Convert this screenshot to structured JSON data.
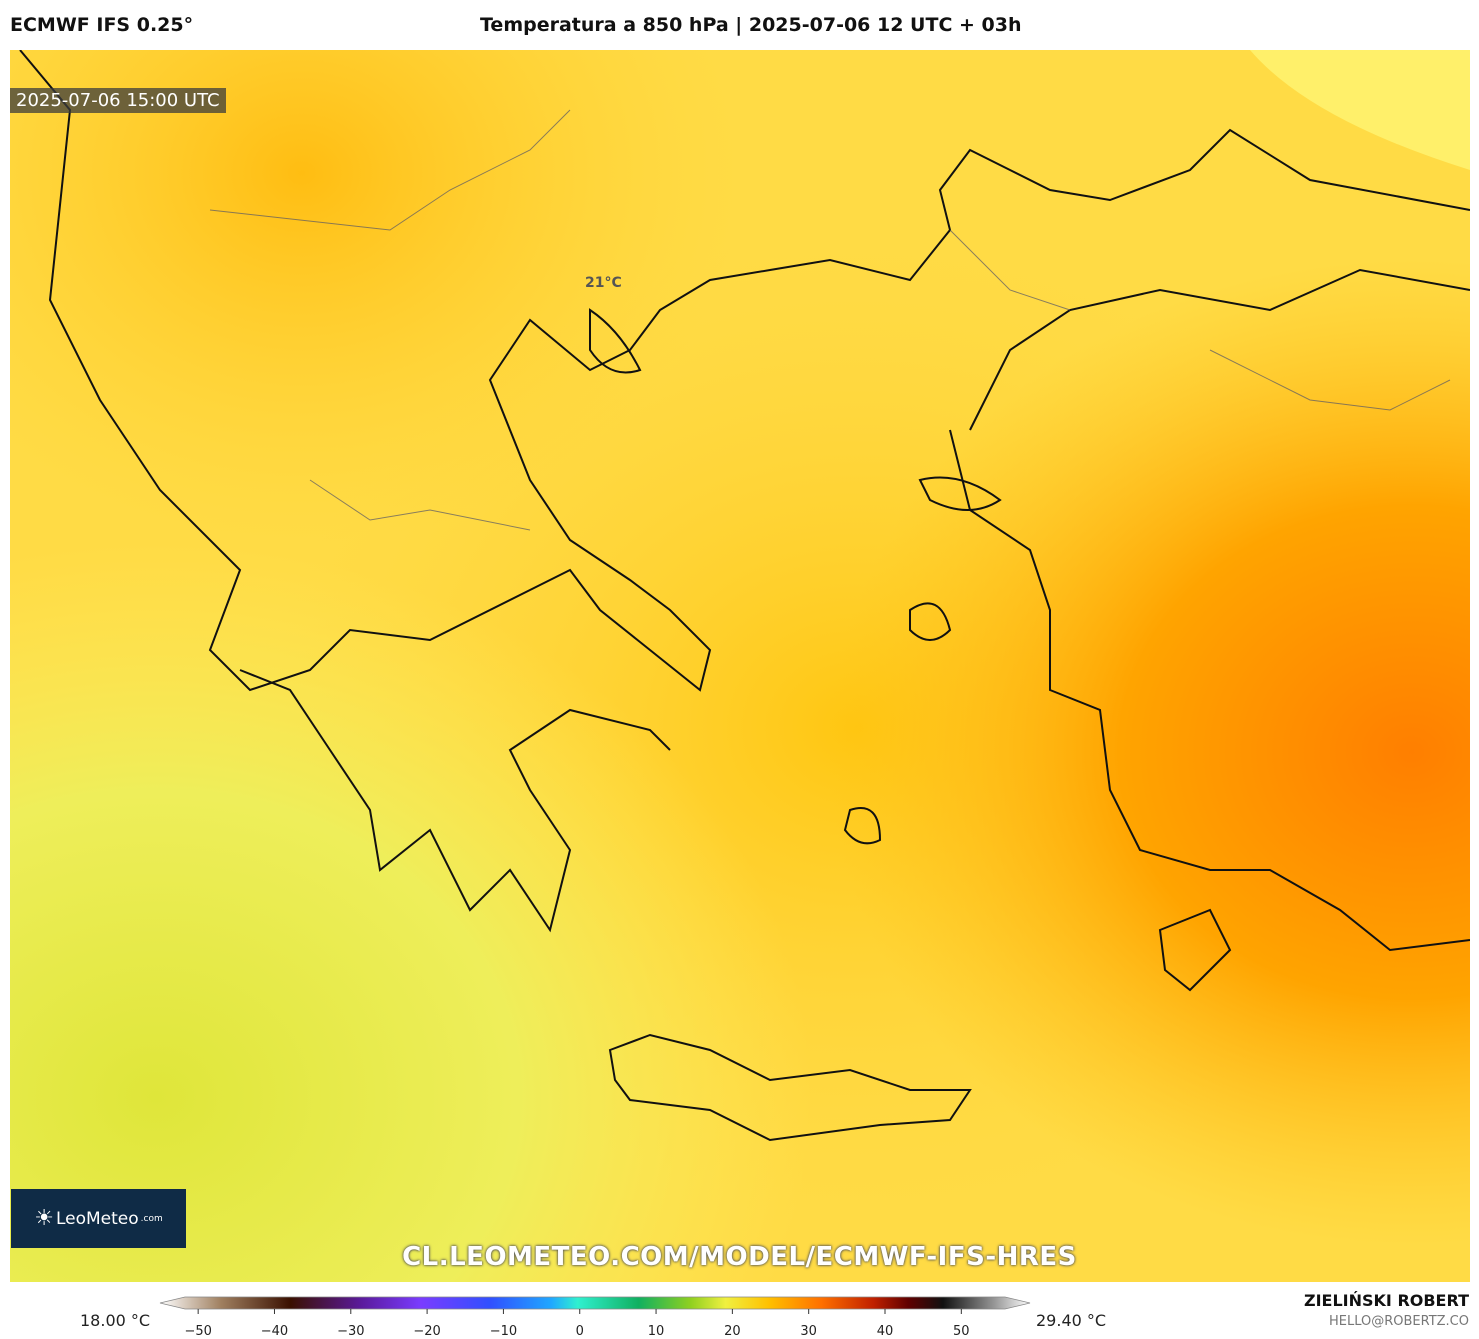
{
  "header": {
    "model": "ECMWF IFS 0.25°",
    "title": "Temperatura a 850 hPa | 2025-07-06 12 UTC + 03h"
  },
  "map": {
    "timestamp": "2025-07-06 15:00 UTC",
    "labels": [
      "21°C"
    ],
    "logo": "LeoMeteo",
    "logo_suffix": ".com",
    "watermark": "CL.LEOMETEO.COM/MODEL/ECMWF-IFS-HRES"
  },
  "colorbar": {
    "min_label": "18.00 °C",
    "max_label": "29.40 °C",
    "lim": [
      -55,
      59
    ],
    "ticks": [
      {
        "value": -50,
        "label": "−50"
      },
      {
        "value": -40,
        "label": "−40"
      },
      {
        "value": -30,
        "label": "−30"
      },
      {
        "value": -20,
        "label": "−20"
      },
      {
        "value": -10,
        "label": "−10"
      },
      0,
      10,
      20,
      30,
      40,
      50
    ]
  },
  "footer": {
    "author": "ZIELIŃSKI ROBERT",
    "email": "HELLO@ROBERTZ.CO"
  }
}
